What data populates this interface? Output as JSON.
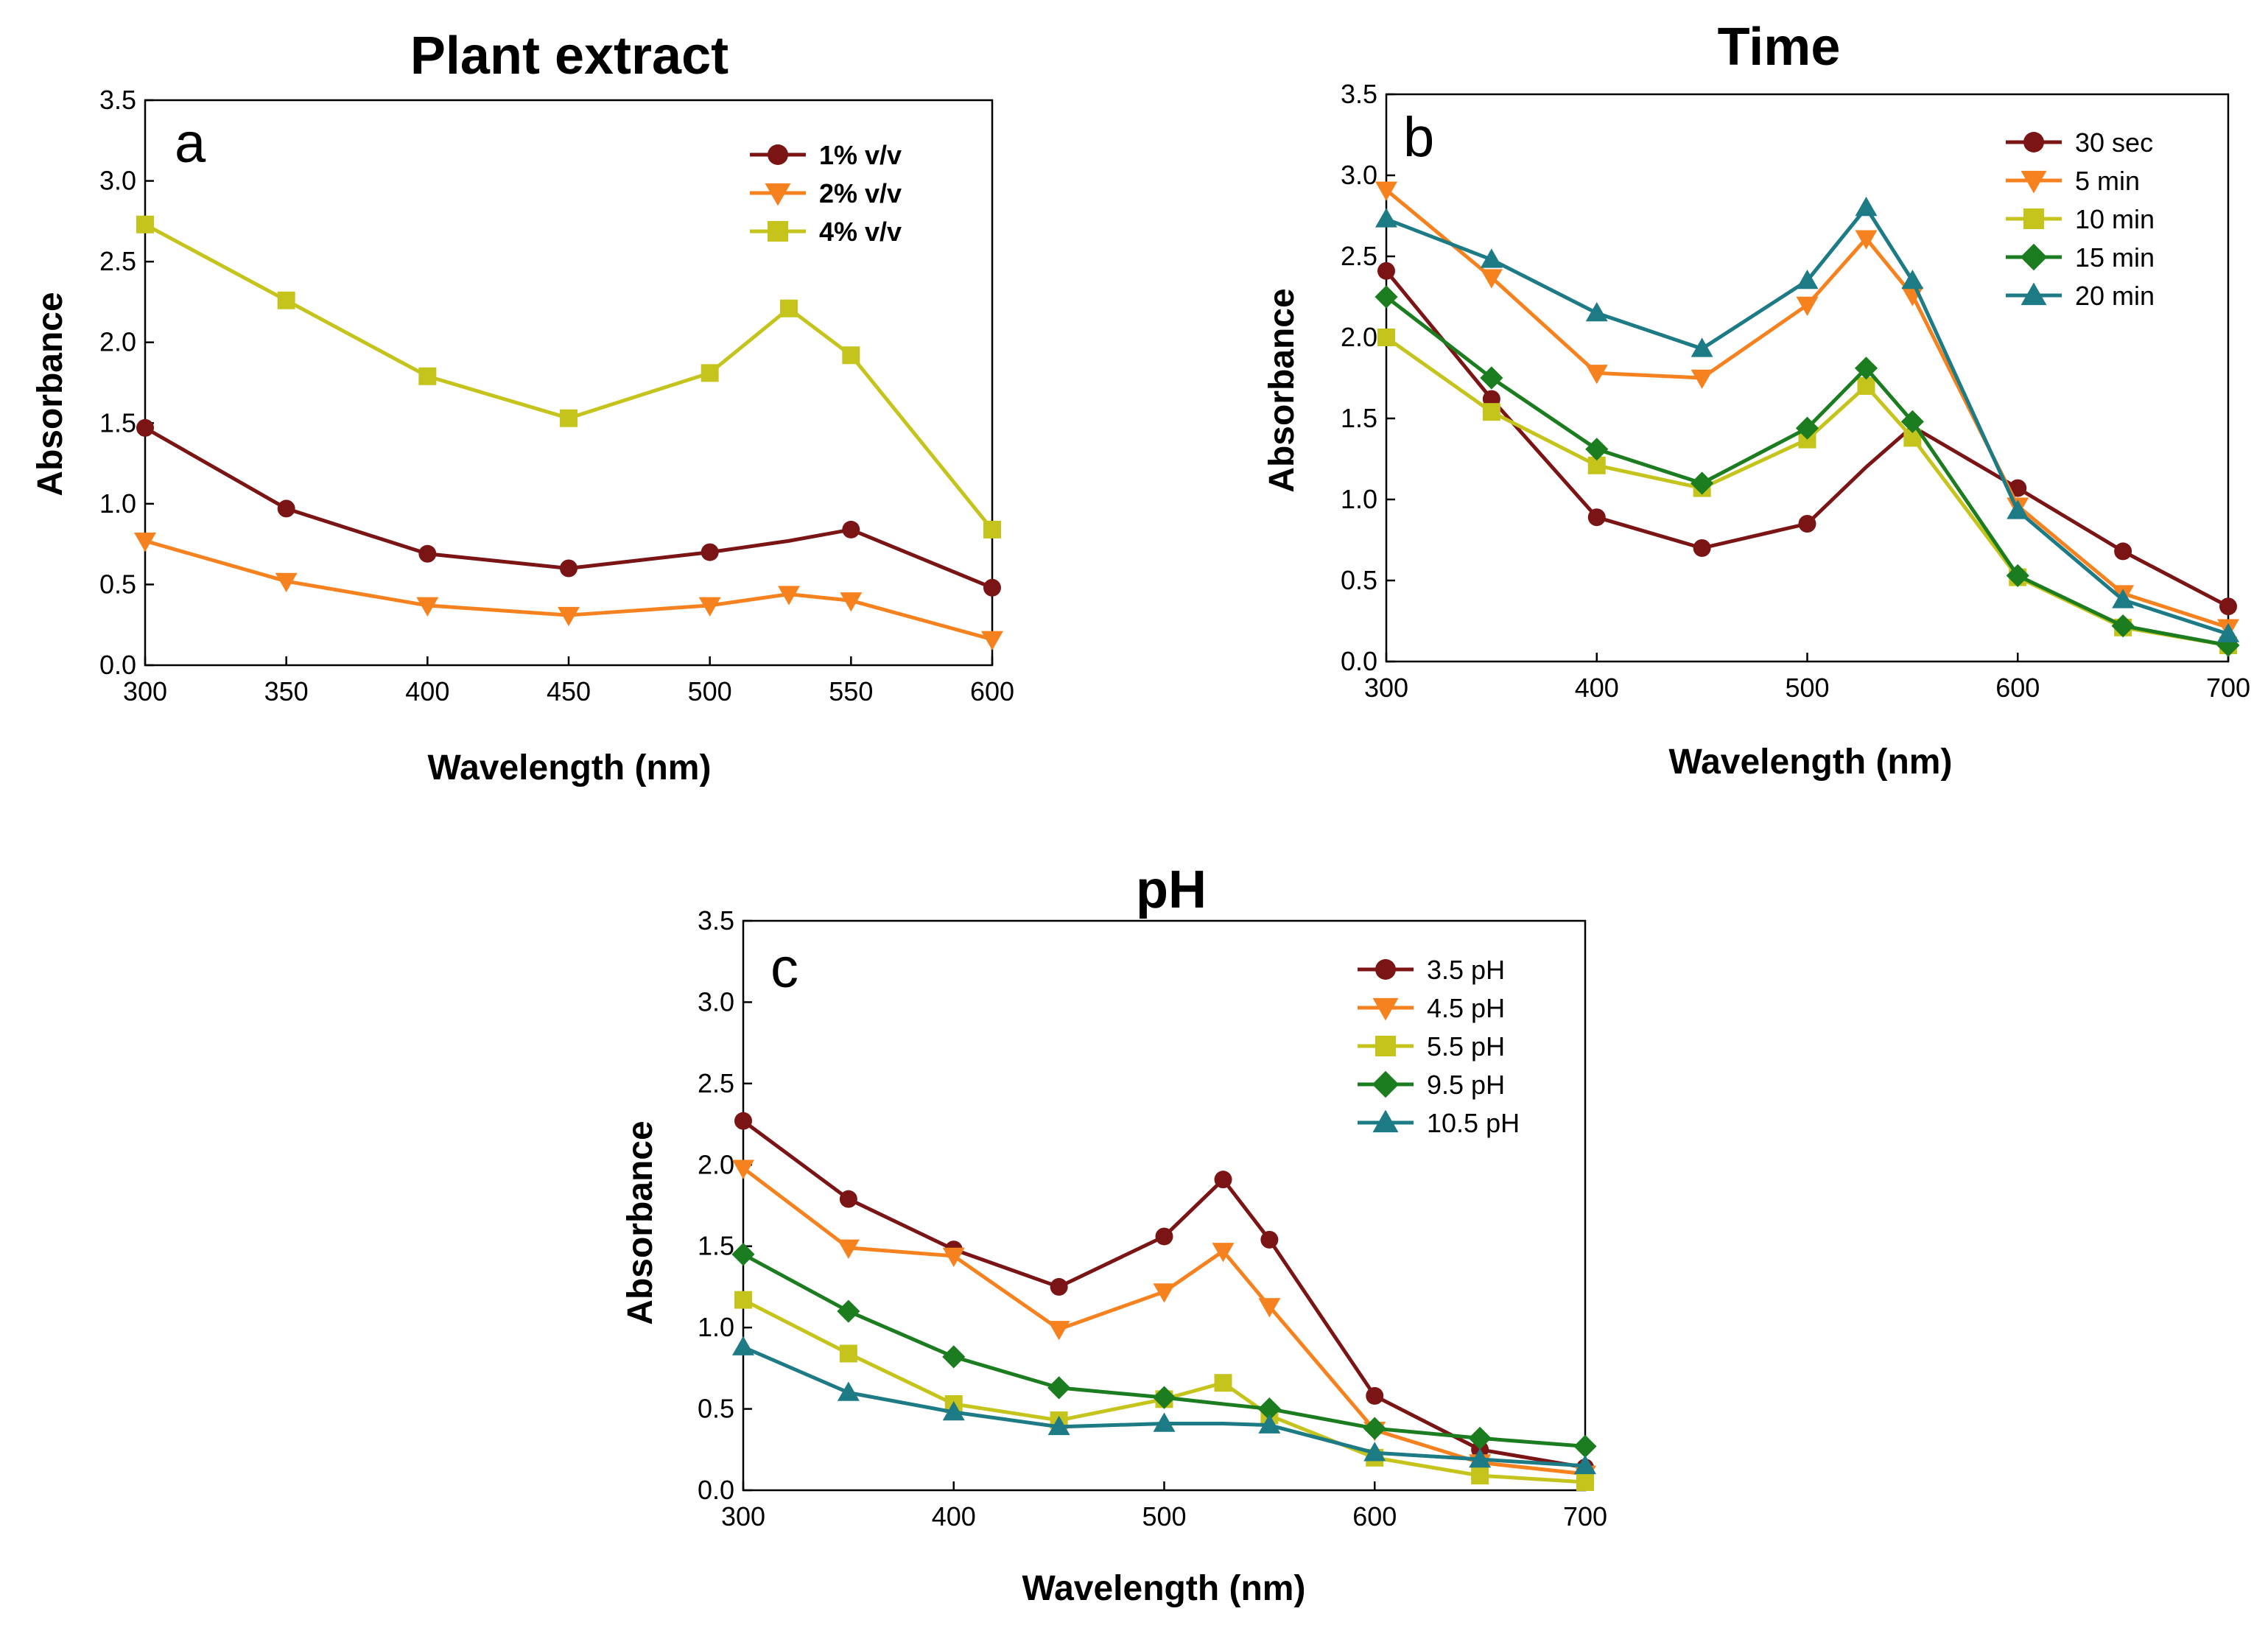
{
  "chart_data": [
    {
      "type": "line",
      "title": "Plant extract",
      "panel_label": "a",
      "xlabel": "Wavelength (nm)",
      "ylabel": "Absorbance",
      "xlim": [
        300,
        600
      ],
      "ylim": [
        0,
        3.5
      ],
      "xticks": [
        "300",
        "350",
        "400",
        "450",
        "500",
        "550",
        "600"
      ],
      "yticks": [
        "0.0",
        "0.5",
        "1.0",
        "1.5",
        "2.0",
        "2.5",
        "3.0",
        "3.5"
      ],
      "legend_position": "top-right",
      "legend_bold": true,
      "x": [
        300,
        350,
        400,
        450,
        500,
        528,
        550,
        600
      ],
      "series": [
        {
          "name": "1% v/v",
          "color": "#7b1515",
          "marker": "circle",
          "values": [
            1.47,
            0.97,
            0.69,
            0.6,
            0.7,
            0.77,
            0.84,
            0.48
          ],
          "marker_mask": [
            1,
            1,
            1,
            1,
            1,
            0,
            1,
            1
          ]
        },
        {
          "name": "2% v/v",
          "color": "#f5821f",
          "marker": "triangle-down",
          "values": [
            0.77,
            0.52,
            0.37,
            0.31,
            0.37,
            0.44,
            0.4,
            0.16
          ],
          "marker_mask": [
            1,
            1,
            1,
            1,
            1,
            1,
            1,
            1
          ]
        },
        {
          "name": "4% v/v",
          "color": "#c5c41d",
          "marker": "square",
          "values": [
            2.73,
            2.26,
            1.79,
            1.53,
            1.81,
            2.21,
            1.92,
            0.84
          ],
          "marker_mask": [
            1,
            1,
            1,
            1,
            1,
            1,
            1,
            1
          ]
        }
      ]
    },
    {
      "type": "line",
      "title": "Time",
      "panel_label": "b",
      "xlabel": "Wavelength (nm)",
      "ylabel": "Absorbance",
      "xlim": [
        300,
        700
      ],
      "ylim": [
        0,
        3.5
      ],
      "xticks": [
        "300",
        "400",
        "500",
        "600",
        "700"
      ],
      "yticks": [
        "0.0",
        "0.5",
        "1.0",
        "1.5",
        "2.0",
        "2.5",
        "3.0",
        "3.5"
      ],
      "legend_position": "top-right",
      "legend_bold": false,
      "x": [
        300,
        350,
        400,
        450,
        500,
        528,
        550,
        600,
        650,
        700
      ],
      "series": [
        {
          "name": "30 sec",
          "color": "#7b1515",
          "marker": "circle",
          "values": [
            2.41,
            1.62,
            0.89,
            0.7,
            0.85,
            1.2,
            1.45,
            1.07,
            0.68,
            0.34
          ],
          "marker_mask": [
            1,
            1,
            1,
            1,
            1,
            0,
            0,
            1,
            1,
            1
          ]
        },
        {
          "name": "5 min",
          "color": "#f5821f",
          "marker": "triangle-down",
          "values": [
            2.91,
            2.37,
            1.78,
            1.75,
            2.2,
            2.61,
            2.26,
            0.96,
            0.42,
            0.21
          ],
          "marker_mask": [
            1,
            1,
            1,
            1,
            1,
            1,
            1,
            1,
            1,
            1
          ]
        },
        {
          "name": "10 min",
          "color": "#c5c41d",
          "marker": "square",
          "values": [
            2.0,
            1.54,
            1.21,
            1.07,
            1.37,
            1.7,
            1.38,
            0.52,
            0.21,
            0.1
          ],
          "marker_mask": [
            1,
            1,
            1,
            1,
            1,
            1,
            1,
            1,
            1,
            1
          ]
        },
        {
          "name": "15 min",
          "color": "#1b7d1f",
          "marker": "diamond",
          "values": [
            2.25,
            1.75,
            1.31,
            1.1,
            1.44,
            1.81,
            1.48,
            0.53,
            0.22,
            0.1
          ],
          "marker_mask": [
            1,
            1,
            1,
            1,
            1,
            1,
            1,
            1,
            1,
            1
          ]
        },
        {
          "name": "20 min",
          "color": "#1d7b86",
          "marker": "triangle-up",
          "values": [
            2.73,
            2.48,
            2.15,
            1.93,
            2.35,
            2.8,
            2.35,
            0.93,
            0.38,
            0.17
          ],
          "marker_mask": [
            1,
            1,
            1,
            1,
            1,
            1,
            1,
            1,
            1,
            1
          ]
        }
      ]
    },
    {
      "type": "line",
      "title": "pH",
      "panel_label": "c",
      "xlabel": "Wavelength (nm)",
      "ylabel": "Absorbance",
      "xlim": [
        300,
        700
      ],
      "ylim": [
        0,
        3.5
      ],
      "xticks": [
        "300",
        "400",
        "500",
        "600",
        "700"
      ],
      "yticks": [
        "0.0",
        "0.5",
        "1.0",
        "1.5",
        "2.0",
        "2.5",
        "3.0",
        "3.5"
      ],
      "legend_position": "top-right",
      "legend_bold": false,
      "x": [
        300,
        350,
        400,
        450,
        500,
        528,
        550,
        600,
        650,
        700
      ],
      "series": [
        {
          "name": "3.5 pH",
          "color": "#7b1515",
          "marker": "circle",
          "values": [
            2.27,
            1.79,
            1.48,
            1.25,
            1.56,
            1.91,
            1.54,
            0.58,
            0.25,
            0.14
          ],
          "marker_mask": [
            1,
            1,
            1,
            1,
            1,
            1,
            1,
            1,
            1,
            1
          ]
        },
        {
          "name": "4.5 pH",
          "color": "#f5821f",
          "marker": "triangle-down",
          "values": [
            1.98,
            1.49,
            1.44,
            0.99,
            1.22,
            1.47,
            1.13,
            0.37,
            0.17,
            0.1
          ],
          "marker_mask": [
            1,
            1,
            1,
            1,
            1,
            1,
            1,
            1,
            1,
            1
          ]
        },
        {
          "name": "5.5 pH",
          "color": "#c5c41d",
          "marker": "square",
          "values": [
            1.17,
            0.84,
            0.53,
            0.43,
            0.56,
            0.66,
            0.46,
            0.2,
            0.09,
            0.05
          ],
          "marker_mask": [
            1,
            1,
            1,
            1,
            1,
            1,
            1,
            1,
            1,
            1
          ]
        },
        {
          "name": "9.5 pH",
          "color": "#1b7d1f",
          "marker": "diamond",
          "values": [
            1.45,
            1.1,
            0.82,
            0.63,
            0.57,
            0.53,
            0.5,
            0.38,
            0.32,
            0.27
          ],
          "marker_mask": [
            1,
            1,
            1,
            1,
            1,
            0,
            1,
            1,
            1,
            1
          ]
        },
        {
          "name": "10.5 pH",
          "color": "#1d7b86",
          "marker": "triangle-up",
          "values": [
            0.88,
            0.6,
            0.48,
            0.39,
            0.41,
            0.41,
            0.4,
            0.23,
            0.19,
            0.15
          ],
          "marker_mask": [
            1,
            1,
            1,
            1,
            1,
            0,
            1,
            1,
            1,
            1
          ]
        }
      ]
    }
  ]
}
